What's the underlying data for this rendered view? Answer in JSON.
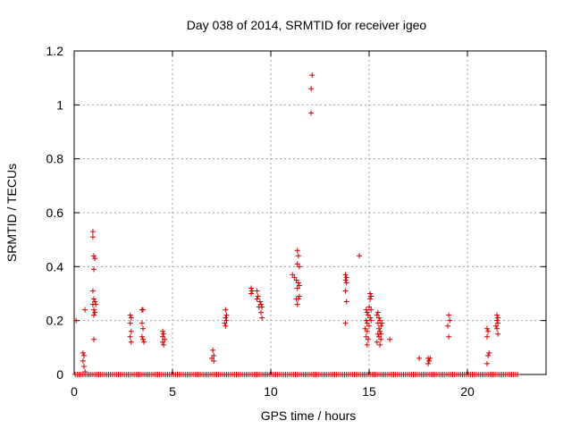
{
  "chart_data": {
    "type": "scatter",
    "title": "Day 038 of 2014, SRMTID for receiver igeo",
    "xlabel": "GPS time / hours",
    "ylabel": "SRMTID / TECUs",
    "xlim": [
      0,
      24
    ],
    "ylim": [
      0,
      1.2
    ],
    "xticks": [
      0,
      5,
      10,
      15,
      20
    ],
    "xtick_labels": [
      "0",
      "5",
      "10",
      "15",
      "20"
    ],
    "yticks": [
      0,
      0.2,
      0.4,
      0.6,
      0.8,
      1.0,
      1.2
    ],
    "ytick_labels": [
      "0",
      "0.2",
      "0.4",
      "0.6",
      "0.8",
      "1",
      "1.2"
    ],
    "grid": true,
    "marker": "+",
    "color": "#d00000",
    "zero_baseline": {
      "x_start": 0.05,
      "x_end": 22.6,
      "step": 0.1,
      "y": 0
    },
    "points": [
      [
        0.1,
        0.2
      ],
      [
        0.45,
        0.08
      ],
      [
        0.5,
        0.07
      ],
      [
        0.45,
        0.05
      ],
      [
        0.5,
        0.03
      ],
      [
        0.55,
        0.01
      ],
      [
        0.55,
        0.24
      ],
      [
        0.95,
        0.53
      ],
      [
        0.95,
        0.51
      ],
      [
        1.0,
        0.44
      ],
      [
        1.05,
        0.43
      ],
      [
        1.0,
        0.39
      ],
      [
        0.95,
        0.31
      ],
      [
        1.0,
        0.28
      ],
      [
        1.05,
        0.27
      ],
      [
        0.95,
        0.26
      ],
      [
        1.1,
        0.26
      ],
      [
        1.0,
        0.24
      ],
      [
        1.05,
        0.23
      ],
      [
        1.0,
        0.22
      ],
      [
        1.0,
        0.13
      ],
      [
        2.85,
        0.22
      ],
      [
        2.9,
        0.21
      ],
      [
        2.85,
        0.19
      ],
      [
        2.9,
        0.16
      ],
      [
        2.85,
        0.14
      ],
      [
        2.9,
        0.12
      ],
      [
        3.45,
        0.24
      ],
      [
        3.5,
        0.24
      ],
      [
        3.45,
        0.19
      ],
      [
        3.5,
        0.17
      ],
      [
        3.45,
        0.14
      ],
      [
        3.5,
        0.13
      ],
      [
        3.55,
        0.12
      ],
      [
        4.5,
        0.16
      ],
      [
        4.55,
        0.15
      ],
      [
        4.5,
        0.14
      ],
      [
        4.6,
        0.13
      ],
      [
        4.5,
        0.12
      ],
      [
        4.55,
        0.11
      ],
      [
        7.05,
        0.09
      ],
      [
        7.1,
        0.07
      ],
      [
        7.0,
        0.06
      ],
      [
        7.1,
        0.05
      ],
      [
        7.7,
        0.24
      ],
      [
        7.75,
        0.22
      ],
      [
        7.7,
        0.21
      ],
      [
        7.75,
        0.2
      ],
      [
        7.65,
        0.19
      ],
      [
        7.7,
        0.18
      ],
      [
        9.0,
        0.32
      ],
      [
        9.05,
        0.31
      ],
      [
        9.0,
        0.3
      ],
      [
        9.3,
        0.31
      ],
      [
        9.35,
        0.29
      ],
      [
        9.3,
        0.28
      ],
      [
        9.45,
        0.27
      ],
      [
        9.5,
        0.26
      ],
      [
        9.4,
        0.25
      ],
      [
        9.55,
        0.25
      ],
      [
        9.5,
        0.23
      ],
      [
        9.55,
        0.21
      ],
      [
        11.1,
        0.37
      ],
      [
        11.2,
        0.36
      ],
      [
        11.35,
        0.46
      ],
      [
        11.4,
        0.44
      ],
      [
        11.35,
        0.41
      ],
      [
        11.45,
        0.4
      ],
      [
        11.3,
        0.35
      ],
      [
        11.4,
        0.34
      ],
      [
        11.35,
        0.32
      ],
      [
        11.45,
        0.33
      ],
      [
        11.3,
        0.28
      ],
      [
        11.4,
        0.28
      ],
      [
        11.35,
        0.26
      ],
      [
        11.45,
        0.29
      ],
      [
        12.1,
        1.11
      ],
      [
        12.05,
        1.06
      ],
      [
        12.05,
        0.97
      ],
      [
        13.8,
        0.37
      ],
      [
        13.85,
        0.36
      ],
      [
        13.8,
        0.35
      ],
      [
        13.85,
        0.34
      ],
      [
        13.8,
        0.31
      ],
      [
        13.85,
        0.27
      ],
      [
        13.8,
        0.19
      ],
      [
        14.5,
        0.44
      ],
      [
        14.85,
        0.24
      ],
      [
        14.9,
        0.23
      ],
      [
        14.95,
        0.22
      ],
      [
        14.85,
        0.2
      ],
      [
        14.9,
        0.19
      ],
      [
        15.0,
        0.18
      ],
      [
        14.8,
        0.17
      ],
      [
        14.9,
        0.16
      ],
      [
        14.85,
        0.14
      ],
      [
        14.95,
        0.13
      ],
      [
        14.9,
        0.11
      ],
      [
        15.05,
        0.3
      ],
      [
        15.1,
        0.29
      ],
      [
        15.05,
        0.28
      ],
      [
        15.0,
        0.25
      ],
      [
        15.1,
        0.24
      ],
      [
        15.05,
        0.21
      ],
      [
        15.1,
        0.2
      ],
      [
        15.4,
        0.22
      ],
      [
        15.45,
        0.23
      ],
      [
        15.5,
        0.21
      ],
      [
        15.55,
        0.2
      ],
      [
        15.45,
        0.19
      ],
      [
        15.6,
        0.18
      ],
      [
        15.5,
        0.17
      ],
      [
        15.55,
        0.16
      ],
      [
        15.45,
        0.15
      ],
      [
        15.5,
        0.14
      ],
      [
        15.6,
        0.13
      ],
      [
        15.4,
        0.12
      ],
      [
        15.55,
        0.11
      ],
      [
        15.6,
        0.15
      ],
      [
        15.65,
        0.19
      ],
      [
        16.05,
        0.13
      ],
      [
        17.55,
        0.06
      ],
      [
        18.0,
        0.06
      ],
      [
        18.05,
        0.05
      ],
      [
        18.1,
        0.06
      ],
      [
        18.0,
        0.04
      ],
      [
        19.05,
        0.22
      ],
      [
        19.1,
        0.2
      ],
      [
        19.0,
        0.18
      ],
      [
        19.05,
        0.14
      ],
      [
        21.0,
        0.17
      ],
      [
        21.05,
        0.16
      ],
      [
        21.0,
        0.14
      ],
      [
        21.1,
        0.08
      ],
      [
        21.05,
        0.07
      ],
      [
        21.0,
        0.04
      ],
      [
        21.5,
        0.22
      ],
      [
        21.55,
        0.21
      ],
      [
        21.5,
        0.2
      ],
      [
        21.55,
        0.19
      ],
      [
        21.45,
        0.18
      ],
      [
        21.5,
        0.17
      ],
      [
        21.55,
        0.15
      ]
    ]
  }
}
